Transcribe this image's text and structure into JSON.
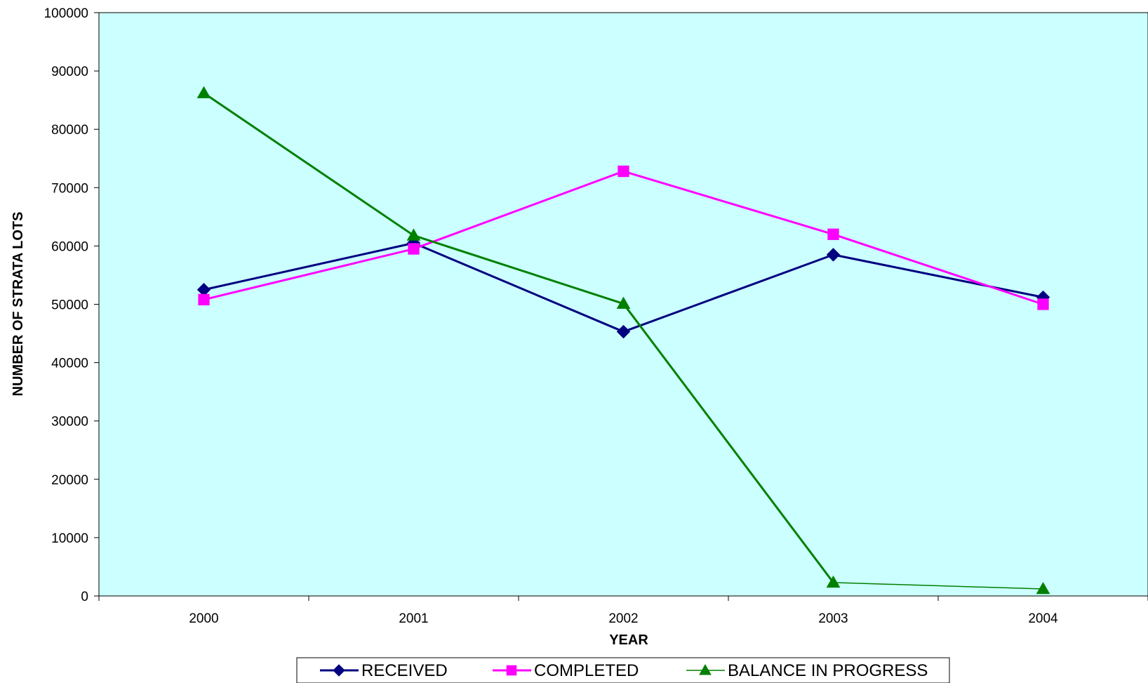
{
  "chart_data": {
    "type": "line",
    "title": "",
    "xlabel": "YEAR",
    "ylabel": "NUMBER OF STRATA LOTS",
    "categories": [
      "2000",
      "2001",
      "2002",
      "2003",
      "2004"
    ],
    "ylim": [
      0,
      100000
    ],
    "yticks": [
      0,
      10000,
      20000,
      30000,
      40000,
      50000,
      60000,
      70000,
      80000,
      90000,
      100000
    ],
    "plot_background": "#ccffff",
    "grid": false,
    "legend_position": "bottom",
    "series": [
      {
        "name": "RECEIVED",
        "color": "#000080",
        "marker": "diamond",
        "values": [
          52500,
          60500,
          45300,
          58500,
          51200
        ]
      },
      {
        "name": "COMPLETED",
        "color": "#ff00ff",
        "marker": "square",
        "values": [
          50800,
          59500,
          72800,
          62000,
          50000
        ]
      },
      {
        "name": "BALANCE IN PROGRESS",
        "color": "#008000",
        "marker": "triangle",
        "values": [
          86200,
          61800,
          50100,
          2300,
          1200
        ]
      }
    ]
  }
}
